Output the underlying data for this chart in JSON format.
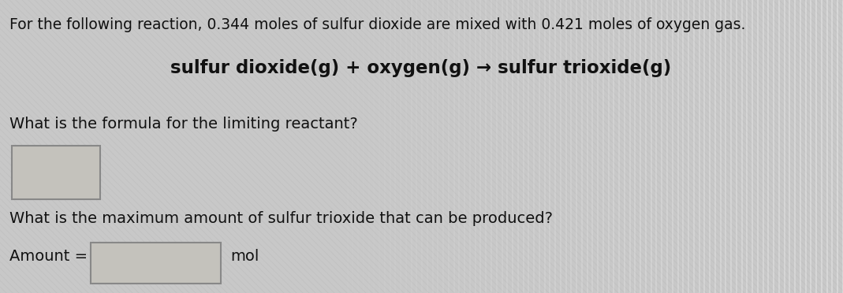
{
  "background_color": "#c8c8c8",
  "line1": "For the following reaction, 0.344 moles of sulfur dioxide are mixed with 0.421 moles of oxygen gas.",
  "line2": "sulfur dioxide(g) + oxygen(g) → sulfur trioxide(g)",
  "line3": "What is the formula for the limiting reactant?",
  "line4": "What is the maximum amount of sulfur trioxide that can be produced?",
  "line5": "Amount =",
  "line6": "mol",
  "text_color": "#111111",
  "font_size_line1": 13.5,
  "font_size_line2": 16.5,
  "font_size_line3": 14,
  "font_size_line4": 14,
  "font_size_amount": 14,
  "stripe_color_dark": "#b8b8b8",
  "stripe_color_light": "#d8d8d8",
  "box_edge_color": "#888888",
  "box_face_color": "#c4c2bc"
}
